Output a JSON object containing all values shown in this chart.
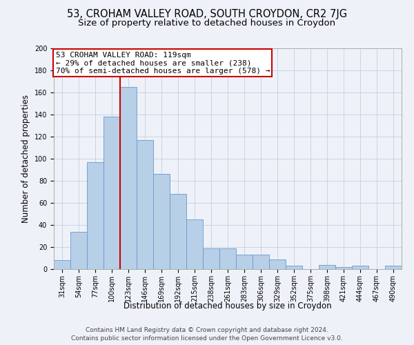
{
  "title": "53, CROHAM VALLEY ROAD, SOUTH CROYDON, CR2 7JG",
  "subtitle": "Size of property relative to detached houses in Croydon",
  "xlabel": "Distribution of detached houses by size in Croydon",
  "ylabel": "Number of detached properties",
  "bin_labels": [
    "31sqm",
    "54sqm",
    "77sqm",
    "100sqm",
    "123sqm",
    "146sqm",
    "169sqm",
    "192sqm",
    "215sqm",
    "238sqm",
    "261sqm",
    "283sqm",
    "306sqm",
    "329sqm",
    "352sqm",
    "375sqm",
    "398sqm",
    "421sqm",
    "444sqm",
    "467sqm",
    "490sqm"
  ],
  "bar_values": [
    8,
    34,
    97,
    138,
    165,
    117,
    86,
    68,
    45,
    19,
    19,
    13,
    13,
    9,
    3,
    0,
    4,
    2,
    3,
    0,
    3
  ],
  "bar_color": "#b8cfe8",
  "bar_edge_color": "#6699cc",
  "bg_color": "#eef2f8",
  "grid_color": "#c5d5e8",
  "vline_color": "#cc0000",
  "vline_index": 3.5,
  "annotation_title": "53 CROHAM VALLEY ROAD: 119sqm",
  "annotation_line1": "← 29% of detached houses are smaller (238)",
  "annotation_line2": "70% of semi-detached houses are larger (578) →",
  "annotation_box_color": "#cc0000",
  "ylim": [
    0,
    200
  ],
  "yticks": [
    0,
    20,
    40,
    60,
    80,
    100,
    120,
    140,
    160,
    180,
    200
  ],
  "footer_line1": "Contains HM Land Registry data © Crown copyright and database right 2024.",
  "footer_line2": "Contains public sector information licensed under the Open Government Licence v3.0.",
  "title_fontsize": 10.5,
  "subtitle_fontsize": 9.5,
  "axis_label_fontsize": 8.5,
  "tick_fontsize": 7,
  "footer_fontsize": 6.5,
  "annotation_fontsize": 8
}
